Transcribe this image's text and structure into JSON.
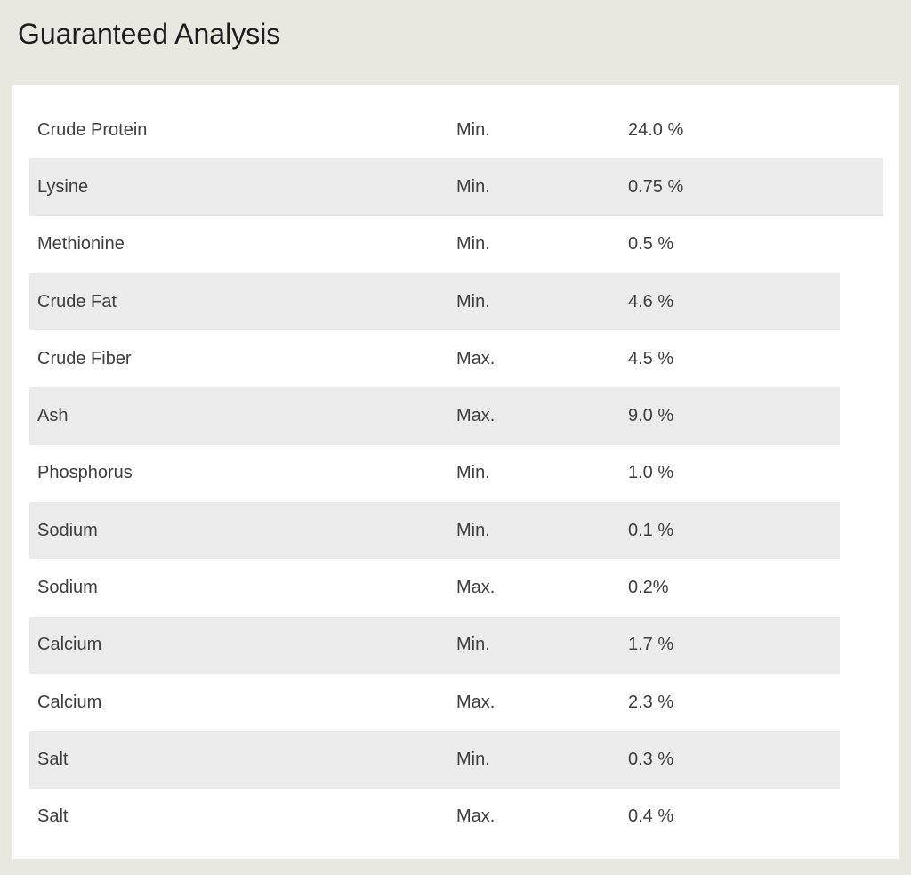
{
  "page": {
    "title": "Guaranteed Analysis"
  },
  "table": {
    "rows": [
      {
        "nutrient": "Crude Protein",
        "qualifier": "Min.",
        "value": "24.0 %",
        "shaded": false
      },
      {
        "nutrient": "Lysine",
        "qualifier": "Min.",
        "value": "0.75 %",
        "shaded": true
      },
      {
        "nutrient": "Methionine",
        "qualifier": "Min.",
        "value": "0.5 %",
        "shaded": false
      },
      {
        "nutrient": "Crude Fat",
        "qualifier": "Min.",
        "value": "4.6 %",
        "shaded": true
      },
      {
        "nutrient": "Crude Fiber",
        "qualifier": "Max.",
        "value": "4.5 %",
        "shaded": false
      },
      {
        "nutrient": "Ash",
        "qualifier": "Max.",
        "value": "9.0 %",
        "shaded": true
      },
      {
        "nutrient": "Phosphorus",
        "qualifier": "Min.",
        "value": "1.0 %",
        "shaded": false
      },
      {
        "nutrient": "Sodium",
        "qualifier": "Min.",
        "value": "0.1 %",
        "shaded": true
      },
      {
        "nutrient": "Sodium",
        "qualifier": "Max.",
        "value": "0.2%",
        "shaded": false
      },
      {
        "nutrient": "Calcium",
        "qualifier": "Min.",
        "value": "1.7 %",
        "shaded": true
      },
      {
        "nutrient": "Calcium",
        "qualifier": "Max.",
        "value": "2.3 %",
        "shaded": false
      },
      {
        "nutrient": "Salt",
        "qualifier": "Min.",
        "value": "0.3 %",
        "shaded": true
      },
      {
        "nutrient": "Salt",
        "qualifier": "Max.",
        "value": "0.4 %",
        "shaded": false
      }
    ]
  },
  "colors": {
    "page_background": "#e9e8e0",
    "card_background": "#ffffff",
    "row_shade": "#ebebeb",
    "title_text": "#1d1d1d",
    "row_text": "#3d3d3d"
  }
}
